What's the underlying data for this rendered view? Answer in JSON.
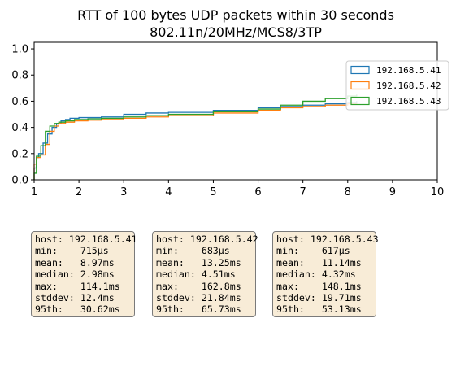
{
  "chart_data": {
    "type": "line",
    "title": "RTT of 100 bytes UDP packets within 30 seconds",
    "subtitle": "802.11n/20MHz/MCS8/3TP",
    "xlabel": "",
    "ylabel": "",
    "xlim": [
      1,
      10
    ],
    "ylim": [
      0,
      1.05
    ],
    "x_ticks": [
      "1",
      "2",
      "3",
      "4",
      "5",
      "6",
      "7",
      "8",
      "9",
      "10"
    ],
    "y_ticks": [
      "0.0",
      "0.2",
      "0.4",
      "0.6",
      "0.8",
      "1.0"
    ],
    "grid": false,
    "legend_position": "right",
    "series": [
      {
        "name": "192.168.5.41",
        "color": "#1f77b4",
        "x": [
          1.0,
          1.05,
          1.1,
          1.2,
          1.3,
          1.4,
          1.5,
          1.6,
          1.7,
          1.8,
          2.0,
          2.5,
          3.0,
          3.5,
          4.0,
          5.0,
          6.0,
          6.5,
          7.0,
          7.5,
          8.0,
          8.2
        ],
        "y": [
          0.09,
          0.17,
          0.2,
          0.28,
          0.35,
          0.4,
          0.43,
          0.45,
          0.46,
          0.47,
          0.475,
          0.48,
          0.5,
          0.51,
          0.515,
          0.53,
          0.55,
          0.56,
          0.57,
          0.58,
          0.59,
          0.6
        ]
      },
      {
        "name": "192.168.5.42",
        "color": "#ff7f0e",
        "x": [
          1.0,
          1.05,
          1.15,
          1.25,
          1.35,
          1.45,
          1.55,
          1.7,
          1.9,
          2.2,
          2.5,
          3.0,
          3.5,
          4.0,
          5.0,
          6.0,
          6.5,
          7.0,
          7.5,
          8.0,
          8.2
        ],
        "y": [
          0.12,
          0.17,
          0.19,
          0.27,
          0.37,
          0.41,
          0.43,
          0.44,
          0.45,
          0.455,
          0.46,
          0.47,
          0.48,
          0.49,
          0.51,
          0.53,
          0.55,
          0.56,
          0.57,
          0.58,
          0.59
        ]
      },
      {
        "name": "192.168.5.43",
        "color": "#2ca02c",
        "x": [
          1.0,
          1.05,
          1.15,
          1.25,
          1.35,
          1.45,
          1.55,
          1.7,
          1.9,
          2.2,
          2.5,
          3.0,
          3.5,
          4.0,
          5.0,
          6.0,
          6.5,
          7.0,
          7.5,
          8.0,
          8.2
        ],
        "y": [
          0.05,
          0.18,
          0.26,
          0.37,
          0.41,
          0.43,
          0.44,
          0.45,
          0.46,
          0.465,
          0.47,
          0.48,
          0.49,
          0.5,
          0.52,
          0.54,
          0.57,
          0.6,
          0.62,
          0.64,
          0.65
        ]
      }
    ],
    "stat_boxes": [
      {
        "lines": [
          "host: 192.168.5.41",
          "min:    715μs",
          "mean:   8.97ms",
          "median: 2.98ms",
          "max:    114.1ms",
          "stddev: 12.4ms",
          "95th:   30.62ms"
        ]
      },
      {
        "lines": [
          "host: 192.168.5.42",
          "min:    683μs",
          "mean:   13.25ms",
          "median: 4.51ms",
          "max:    162.8ms",
          "stddev: 21.84ms",
          "95th:   65.73ms"
        ]
      },
      {
        "lines": [
          "host: 192.168.5.43",
          "min:    617μs",
          "mean:   11.14ms",
          "median: 4.32ms",
          "max:    148.1ms",
          "stddev: 19.71ms",
          "95th:   53.13ms"
        ]
      }
    ]
  }
}
